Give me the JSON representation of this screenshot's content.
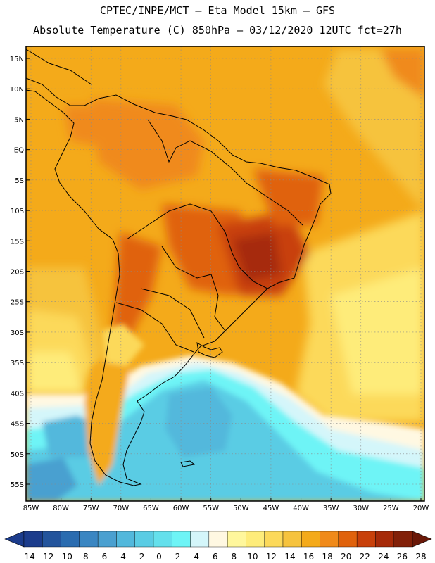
{
  "header": {
    "line1": "CPTEC/INPE/MCT –  Eta Model 15km – GFS",
    "line2": "Absolute Temperature (C) 850hPa – 03/12/2020 12UTC fct=27h"
  },
  "map": {
    "lat_labels": [
      "15N",
      "10N",
      "5N",
      "EQ",
      "5S",
      "10S",
      "15S",
      "20S",
      "25S",
      "30S",
      "35S",
      "40S",
      "45S",
      "50S",
      "55S"
    ],
    "lon_labels": [
      "85W",
      "80W",
      "75W",
      "70W",
      "65W",
      "60W",
      "55W",
      "50W",
      "45W",
      "40W",
      "35W",
      "30W",
      "25W",
      "20W"
    ],
    "lat_range": [
      15,
      -55
    ],
    "lon_range": [
      -85,
      -20
    ]
  },
  "colorbar": {
    "labels": [
      "-14",
      "-12",
      "-10",
      "-8",
      "-6",
      "-4",
      "-2",
      "0",
      "2",
      "4",
      "6",
      "8",
      "10",
      "12",
      "14",
      "16",
      "18",
      "20",
      "22",
      "24",
      "26",
      "28"
    ],
    "colors": [
      "#1c3c8c",
      "#23549c",
      "#2a6cb0",
      "#3a86c2",
      "#4aa0d0",
      "#52b8dc",
      "#5acce4",
      "#64e0ec",
      "#6ef4f6",
      "#d4f6fa",
      "#fff8e2",
      "#fff79c",
      "#feec7a",
      "#fcd95a",
      "#f6c33e",
      "#f4aa1a",
      "#f08a1a",
      "#e0620c",
      "#c8400a",
      "#a62a08",
      "#822008"
    ]
  }
}
